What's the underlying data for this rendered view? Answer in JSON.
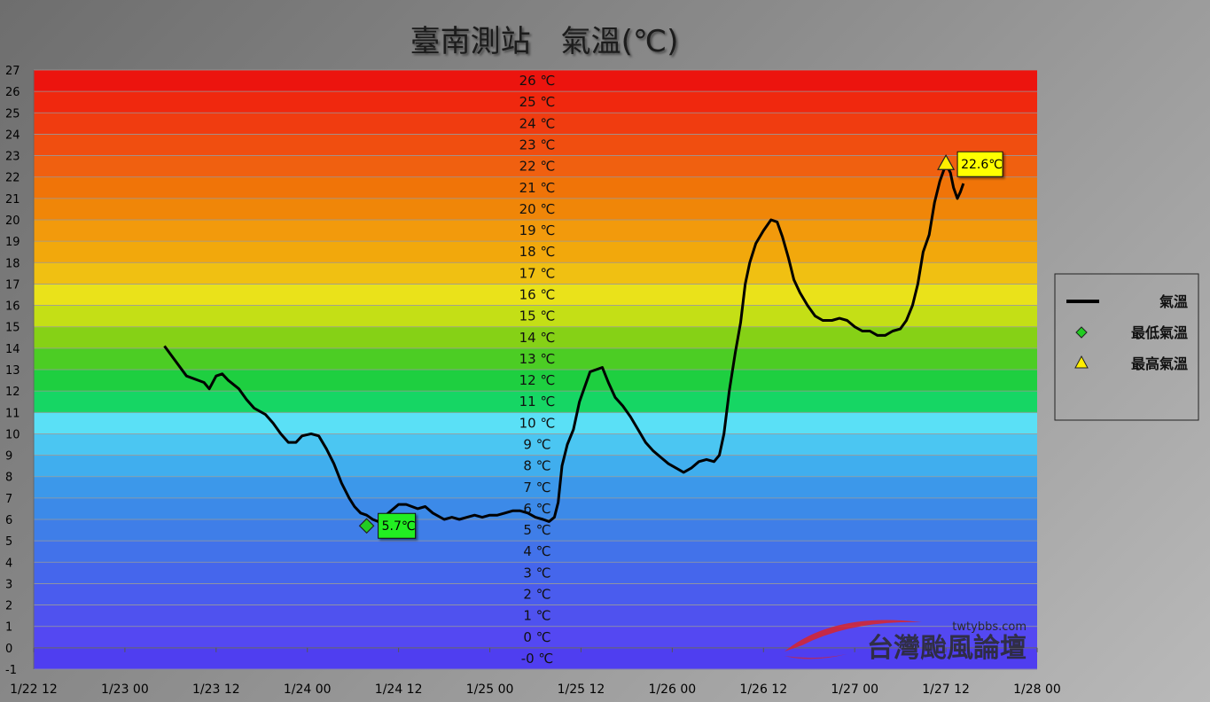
{
  "chart_data": {
    "type": "line",
    "title": "臺南測站　氣溫(℃)",
    "ylim": [
      -1,
      27
    ],
    "y_ticks": [
      -1,
      0,
      1,
      2,
      3,
      4,
      5,
      6,
      7,
      8,
      9,
      10,
      11,
      12,
      13,
      14,
      15,
      16,
      17,
      18,
      19,
      20,
      21,
      22,
      23,
      24,
      25,
      26,
      27
    ],
    "x_range_hours": [
      0,
      132
    ],
    "x_ticks": [
      {
        "h": 0,
        "label": "1/22 12"
      },
      {
        "h": 12,
        "label": "1/23 00"
      },
      {
        "h": 24,
        "label": "1/23 12"
      },
      {
        "h": 36,
        "label": "1/24 00"
      },
      {
        "h": 48,
        "label": "1/24 12"
      },
      {
        "h": 60,
        "label": "1/25 00"
      },
      {
        "h": 72,
        "label": "1/25 12"
      },
      {
        "h": 84,
        "label": "1/26 00"
      },
      {
        "h": 96,
        "label": "1/26 12"
      },
      {
        "h": 108,
        "label": "1/27 00"
      },
      {
        "h": 120,
        "label": "1/27 12"
      },
      {
        "h": 132,
        "label": "1/28 00"
      }
    ],
    "band_labels": [
      "-0 ℃",
      "0 ℃",
      "1 ℃",
      "2 ℃",
      "3 ℃",
      "4 ℃",
      "5 ℃",
      "6 ℃",
      "7 ℃",
      "8 ℃",
      "9 ℃",
      "10 ℃",
      "11 ℃",
      "12 ℃",
      "13 ℃",
      "14 ℃",
      "15 ℃",
      "16 ℃",
      "17 ℃",
      "18 ℃",
      "19 ℃",
      "20 ℃",
      "21 ℃",
      "22 ℃",
      "23 ℃",
      "24 ℃",
      "25 ℃",
      "26 ℃"
    ],
    "band_colors": [
      "#4f3ef0",
      "#5448f2",
      "#4f52ef",
      "#4a5cee",
      "#4566ec",
      "#4272ea",
      "#3f7ee8",
      "#3c8ae8",
      "#3c98ea",
      "#40aeee",
      "#4bc6f2",
      "#5ae0f6",
      "#16d664",
      "#1ecf40",
      "#4ccd24",
      "#86d116",
      "#c4df16",
      "#eae21a",
      "#f0c012",
      "#f2a80c",
      "#f29a0c",
      "#f08608",
      "#f07408",
      "#f06010",
      "#f04e10",
      "#f03c10",
      "#f0280e",
      "#ec140e"
    ],
    "series": [
      {
        "name": "氣溫",
        "color": "#000000",
        "points": [
          [
            17.2,
            14.1
          ],
          [
            20.1,
            12.7
          ],
          [
            22.4,
            12.4
          ],
          [
            23.1,
            12.1
          ],
          [
            24.0,
            12.7
          ],
          [
            24.8,
            12.8
          ],
          [
            25.6,
            12.5
          ],
          [
            27.0,
            12.1
          ],
          [
            28.0,
            11.6
          ],
          [
            29.0,
            11.2
          ],
          [
            30.5,
            10.9
          ],
          [
            31.5,
            10.5
          ],
          [
            32.5,
            10.0
          ],
          [
            33.5,
            9.6
          ],
          [
            34.5,
            9.6
          ],
          [
            35.3,
            9.9
          ],
          [
            36.5,
            10.0
          ],
          [
            37.5,
            9.9
          ],
          [
            38.5,
            9.3
          ],
          [
            39.5,
            8.6
          ],
          [
            40.5,
            7.7
          ],
          [
            41.5,
            7.0
          ],
          [
            42.2,
            6.6
          ],
          [
            43.0,
            6.3
          ],
          [
            43.8,
            6.2
          ],
          [
            44.6,
            6.0
          ],
          [
            45.3,
            5.9
          ],
          [
            46.0,
            6.1
          ],
          [
            47.0,
            6.4
          ],
          [
            48.0,
            6.7
          ],
          [
            49.0,
            6.7
          ],
          [
            50.5,
            6.5
          ],
          [
            51.5,
            6.6
          ],
          [
            52.5,
            6.3
          ],
          [
            54.0,
            6.0
          ],
          [
            55.0,
            6.1
          ],
          [
            56.0,
            6.0
          ],
          [
            57.0,
            6.1
          ],
          [
            58.0,
            6.2
          ],
          [
            59.0,
            6.1
          ],
          [
            60.0,
            6.2
          ],
          [
            61.0,
            6.2
          ],
          [
            62.0,
            6.3
          ],
          [
            63.0,
            6.4
          ],
          [
            64.0,
            6.4
          ],
          [
            65.0,
            6.3
          ],
          [
            66.0,
            6.1
          ],
          [
            67.0,
            6.0
          ],
          [
            67.8,
            5.9
          ],
          [
            68.5,
            6.1
          ],
          [
            69.0,
            6.8
          ],
          [
            69.5,
            8.5
          ],
          [
            70.2,
            9.5
          ],
          [
            71.0,
            10.2
          ],
          [
            71.8,
            11.5
          ],
          [
            72.5,
            12.2
          ],
          [
            73.2,
            12.9
          ],
          [
            74.0,
            13.0
          ],
          [
            74.8,
            13.1
          ],
          [
            75.6,
            12.4
          ],
          [
            76.5,
            11.7
          ],
          [
            77.5,
            11.3
          ],
          [
            78.5,
            10.8
          ],
          [
            79.5,
            10.2
          ],
          [
            80.5,
            9.6
          ],
          [
            81.5,
            9.2
          ],
          [
            82.5,
            8.9
          ],
          [
            83.5,
            8.6
          ],
          [
            84.5,
            8.4
          ],
          [
            85.5,
            8.2
          ],
          [
            86.5,
            8.4
          ],
          [
            87.5,
            8.7
          ],
          [
            88.5,
            8.8
          ],
          [
            89.5,
            8.7
          ],
          [
            90.2,
            9.0
          ],
          [
            90.8,
            10.0
          ],
          [
            91.5,
            12.0
          ],
          [
            92.3,
            13.8
          ],
          [
            93.0,
            15.2
          ],
          [
            93.6,
            17.0
          ],
          [
            94.2,
            18.0
          ],
          [
            95.0,
            18.9
          ],
          [
            96.0,
            19.5
          ],
          [
            97.0,
            20.0
          ],
          [
            97.8,
            19.9
          ],
          [
            98.5,
            19.2
          ],
          [
            99.3,
            18.2
          ],
          [
            100.0,
            17.2
          ],
          [
            100.8,
            16.6
          ],
          [
            101.8,
            16.0
          ],
          [
            102.8,
            15.5
          ],
          [
            103.8,
            15.3
          ],
          [
            105.0,
            15.3
          ],
          [
            106.0,
            15.4
          ],
          [
            107.0,
            15.3
          ],
          [
            108.0,
            15.0
          ],
          [
            109.0,
            14.8
          ],
          [
            110.0,
            14.8
          ],
          [
            111.0,
            14.6
          ],
          [
            112.0,
            14.6
          ],
          [
            113.0,
            14.8
          ],
          [
            114.0,
            14.9
          ],
          [
            114.8,
            15.3
          ],
          [
            115.6,
            16.0
          ],
          [
            116.3,
            17.0
          ],
          [
            117.0,
            18.5
          ],
          [
            117.8,
            19.3
          ],
          [
            118.5,
            20.8
          ],
          [
            119.2,
            21.8
          ],
          [
            120.0,
            22.6
          ],
          [
            120.6,
            22.2
          ],
          [
            121.0,
            21.5
          ],
          [
            121.5,
            21.0
          ],
          [
            121.9,
            21.3
          ],
          [
            122.3,
            21.7
          ]
        ]
      },
      {
        "name": "最低氣溫",
        "color": "#22cc22",
        "marker": "diamond",
        "points": [
          [
            43.8,
            5.7
          ]
        ]
      },
      {
        "name": "最高氣溫",
        "color": "#ffee00",
        "marker": "triangle",
        "points": [
          [
            120.0,
            22.6
          ]
        ]
      }
    ],
    "annotations": [
      {
        "label": "5.7℃",
        "h": 43.8,
        "v": 5.7,
        "bg": "#22ee22"
      },
      {
        "label": "22.6℃",
        "h": 120.0,
        "v": 22.6,
        "bg": "#ffff00"
      }
    ],
    "legend": {
      "placement": "right",
      "entries": [
        {
          "label": "氣溫",
          "marker": "line",
          "color": "#000000"
        },
        {
          "label": "最低氣溫",
          "marker": "diamond",
          "color": "#22cc22"
        },
        {
          "label": "最高氣溫",
          "marker": "triangle",
          "color": "#ffee00"
        }
      ]
    },
    "grid": true
  },
  "watermark": {
    "url": "twtybbs.com",
    "name": "台灣颱風論壇"
  }
}
